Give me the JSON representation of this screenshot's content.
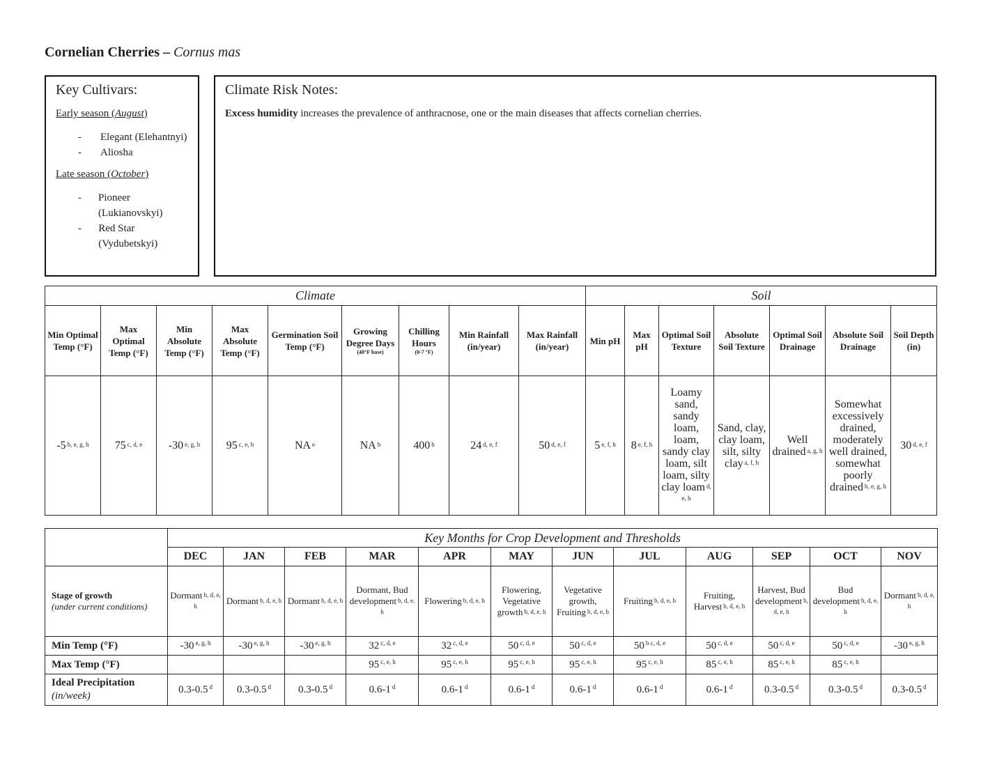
{
  "title": {
    "common": "Cornelian Cherries – ",
    "latin": "Cornus mas"
  },
  "cultivars": {
    "heading": "Key Cultivars:",
    "groups": [
      {
        "season": "Early season (",
        "month": "August",
        "close": ")",
        "items": [
          "Elegant (Elehantnyi)",
          "Aliosha"
        ]
      },
      {
        "season": "Late season (",
        "month": "October",
        "close": ")",
        "items": [
          "Pioneer (Lukianovskyi)",
          "Red Star (Vydubetskyi)"
        ]
      }
    ]
  },
  "risk": {
    "heading": "Climate Risk Notes:",
    "bold": "Excess humidity",
    "text": " increases the prevalence of anthracnose, one or the main diseases that affects cornelian cherries."
  },
  "requirements": {
    "group_climate": "Climate",
    "group_soil": "Soil",
    "headers": [
      {
        "t": "Min Optimal Temp (°F)"
      },
      {
        "t": "Max Optimal Temp (°F)"
      },
      {
        "t": "Min Absolute Temp (°F)"
      },
      {
        "t": "Max Absolute Temp (°F)"
      },
      {
        "t": "Germination Soil Temp (°F)"
      },
      {
        "t": "Growing Degree Days",
        "s": "(40°F base)"
      },
      {
        "t": "Chilling Hours",
        "s": "(0-7 °F)"
      },
      {
        "t": "Min Rainfall (in/year)"
      },
      {
        "t": "Max Rainfall (in/year)"
      },
      {
        "t": "Min pH"
      },
      {
        "t": "Max pH"
      },
      {
        "t": "Optimal Soil Texture"
      },
      {
        "t": "Absolute Soil Texture"
      },
      {
        "t": "Optimal Soil Drainage"
      },
      {
        "t": "Absolute Soil Drainage"
      },
      {
        "t": "Soil Depth (in)"
      }
    ],
    "values": [
      {
        "v": "-5",
        "s": "b, e, g, h"
      },
      {
        "v": "75",
        "s": "c, d, e"
      },
      {
        "v": "-30",
        "s": "e, g, h"
      },
      {
        "v": "95",
        "s": "c, e, h"
      },
      {
        "v": "NA",
        "s": "e"
      },
      {
        "v": "NA",
        "s": "b"
      },
      {
        "v": "400",
        "s": "b"
      },
      {
        "v": "24",
        "s": "d, e, f"
      },
      {
        "v": "50",
        "s": "d, e, f"
      },
      {
        "v": "5",
        "s": "e, f, h"
      },
      {
        "v": "8",
        "s": "e, f, h"
      },
      {
        "v": "Loamy sand, sandy loam, loam, sandy clay loam, silt loam, silty clay loam",
        "s": "d, e, h"
      },
      {
        "v": "Sand, clay, clay loam, silt, silty clay",
        "s": "a, f, h"
      },
      {
        "v": "Well drained",
        "s": "a, g, h"
      },
      {
        "v": "Somewhat excessively drained, moderately well drained, somewhat poorly drained",
        "s": "b, e, g, h"
      },
      {
        "v": "30",
        "s": "d, e, f"
      }
    ]
  },
  "months": {
    "heading": "Key Months for Crop Development and Thresholds",
    "list": [
      "DEC",
      "JAN",
      "FEB",
      "MAR",
      "APR",
      "MAY",
      "JUN",
      "JUL",
      "AUG",
      "SEP",
      "OCT",
      "NOV"
    ],
    "stage_label": "Stage of growth",
    "stage_note": "(under current conditions)",
    "stage": [
      {
        "v": "Dormant",
        "s": "b, d, e, h"
      },
      {
        "v": "Dormant",
        "s": "b, d, e, h"
      },
      {
        "v": "Dormant",
        "s": "b, d, e, h"
      },
      {
        "v": "Dormant, Bud development",
        "s": "b, d, e, h"
      },
      {
        "v": "Flowering",
        "s": "b, d, e, h"
      },
      {
        "v": "Flowering, Vegetative growth",
        "s": "b, d, e, h"
      },
      {
        "v": "Vegetative growth, Fruiting",
        "s": "b, d, e, h"
      },
      {
        "v": "Fruiting",
        "s": "b, d, e, h"
      },
      {
        "v": "Fruiting, Harvest",
        "s": "b, d, e, h"
      },
      {
        "v": "Harvest, Bud development",
        "s": "b, d, e, h"
      },
      {
        "v": "Bud development",
        "s": "b, d, e, h"
      },
      {
        "v": "Dormant",
        "s": "b, d, e, h"
      }
    ],
    "min_label": "Min Temp (°F)",
    "min": [
      {
        "v": "-30",
        "s": "e, g, h"
      },
      {
        "v": "-30",
        "s": "e, g, h"
      },
      {
        "v": "-30",
        "s": "e, g, h"
      },
      {
        "v": "32",
        "s": "c, d, e"
      },
      {
        "v": "32",
        "s": "c, d, e"
      },
      {
        "v": "50",
        "s": "c, d, e"
      },
      {
        "v": "50",
        "s": "c, d, e"
      },
      {
        "v": "50",
        "s": "b c, d, e"
      },
      {
        "v": "50",
        "s": "c, d, e"
      },
      {
        "v": "50",
        "s": "c, d, e"
      },
      {
        "v": "50",
        "s": "c, d, e"
      },
      {
        "v": "-30",
        "s": "e, g, h"
      }
    ],
    "max_label": "Max Temp (°F)",
    "max": [
      {
        "v": "",
        "s": ""
      },
      {
        "v": "",
        "s": ""
      },
      {
        "v": "",
        "s": ""
      },
      {
        "v": "95",
        "s": "c, e, h"
      },
      {
        "v": "95",
        "s": "c, e, h"
      },
      {
        "v": "95",
        "s": "c, e, h"
      },
      {
        "v": "95",
        "s": "c, e, h"
      },
      {
        "v": "95",
        "s": "c, e, h"
      },
      {
        "v": "85",
        "s": "c, e, h"
      },
      {
        "v": "85",
        "s": "c, e, h"
      },
      {
        "v": "85",
        "s": "c, e, h"
      },
      {
        "v": "",
        "s": ""
      }
    ],
    "precip_label": "Ideal Precipitation",
    "precip_unit": "(in/week)",
    "precip": [
      {
        "v": "0.3-0.5",
        "s": "d"
      },
      {
        "v": "0.3-0.5",
        "s": "d"
      },
      {
        "v": "0.3-0.5",
        "s": "d"
      },
      {
        "v": "0.6-1",
        "s": "d"
      },
      {
        "v": "0.6-1",
        "s": "d"
      },
      {
        "v": "0.6-1",
        "s": "d"
      },
      {
        "v": "0.6-1",
        "s": "d"
      },
      {
        "v": "0.6-1",
        "s": "d"
      },
      {
        "v": "0.6-1",
        "s": "d"
      },
      {
        "v": "0.3-0.5",
        "s": "d"
      },
      {
        "v": "0.3-0.5",
        "s": "d"
      },
      {
        "v": "0.3-0.5",
        "s": "d"
      }
    ]
  }
}
